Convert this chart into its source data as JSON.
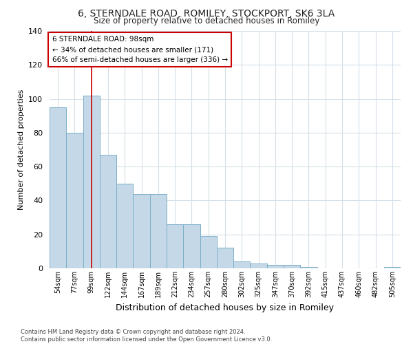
{
  "title_line1": "6, STERNDALE ROAD, ROMILEY, STOCKPORT, SK6 3LA",
  "title_line2": "Size of property relative to detached houses in Romiley",
  "xlabel": "Distribution of detached houses by size in Romiley",
  "ylabel": "Number of detached properties",
  "categories": [
    "54sqm",
    "77sqm",
    "99sqm",
    "122sqm",
    "144sqm",
    "167sqm",
    "189sqm",
    "212sqm",
    "234sqm",
    "257sqm",
    "280sqm",
    "302sqm",
    "325sqm",
    "347sqm",
    "370sqm",
    "392sqm",
    "415sqm",
    "437sqm",
    "460sqm",
    "482sqm",
    "505sqm"
  ],
  "values": [
    95,
    80,
    102,
    67,
    50,
    44,
    44,
    26,
    26,
    19,
    12,
    4,
    3,
    2,
    2,
    1,
    0,
    0,
    0,
    0,
    1
  ],
  "bar_color": "#c5d8e8",
  "bar_edge_color": "#7aafc8",
  "highlight_bar_index": 2,
  "highlight_line_color": "#cc0000",
  "ylim": [
    0,
    140
  ],
  "yticks": [
    0,
    20,
    40,
    60,
    80,
    100,
    120,
    140
  ],
  "annotation_text": "6 STERNDALE ROAD: 98sqm\n← 34% of detached houses are smaller (171)\n66% of semi-detached houses are larger (336) →",
  "annotation_box_color": "#ffffff",
  "annotation_box_edge_color": "#cc0000",
  "footer_text": "Contains HM Land Registry data © Crown copyright and database right 2024.\nContains public sector information licensed under the Open Government Licence v3.0.",
  "background_color": "#ffffff",
  "grid_color": "#d5dfe8"
}
